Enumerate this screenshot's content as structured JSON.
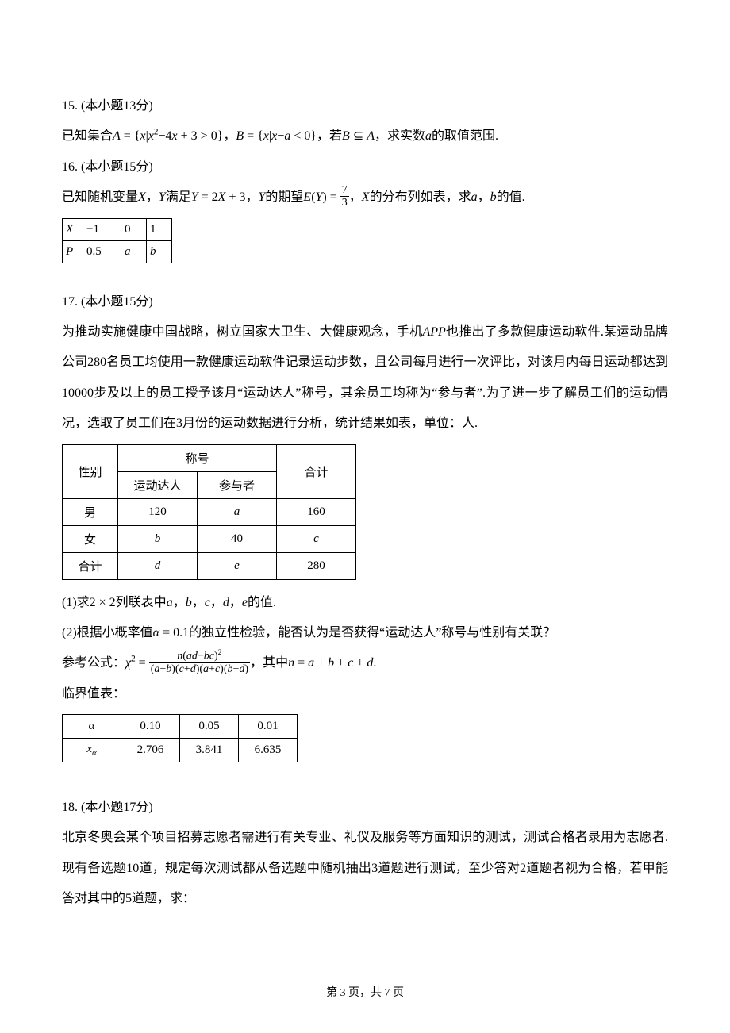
{
  "q15": {
    "heading": "15. (本小题13分)",
    "body": "已知集合<span class=\"math-i\">A</span> = {<span class=\"math-i\">x</span>|<span class=\"math-i\">x</span><sup>2</sup>−4<span class=\"math-i\">x</span> + 3 > 0}，<span class=\"math-i\">B</span> = {<span class=\"math-i\">x</span>|<span class=\"math-i\">x</span>−<span class=\"math-i\">a</span> < 0}，若<span class=\"math-i\">B</span> ⊆ <span class=\"math-i\">A</span>，求实数<span class=\"math-i\">a</span>的取值范围."
  },
  "q16": {
    "heading": "16. (本小题15分)",
    "body_pre": "已知随机变量<span class=\"math-i\">X</span>，<span class=\"math-i\">Y</span>满足<span class=\"math-i\">Y</span> = 2<span class=\"math-i\">X</span> + 3，<span class=\"math-i\">Y</span>的期望<span class=\"math-i\">E</span>(<span class=\"math-i\">Y</span>) = ",
    "frac": {
      "num": "7",
      "den": "3"
    },
    "body_post": "，<span class=\"math-i\">X</span>的分布列如表，求<span class=\"math-i\">a</span>，<span class=\"math-i\">b</span>的值.",
    "table": {
      "row1": [
        "X",
        "−1",
        "0",
        "1"
      ],
      "row2": [
        "P",
        "0.5",
        "a",
        "b"
      ]
    }
  },
  "q17": {
    "heading": "17. (本小题15分)",
    "p1": "为推动实施健康中国战略，树立国家大卫生、大健康观念，手机<span class=\"math-i\">APP</span>也推出了多款健康运动软件.某运动品牌公司280名员工均使用一款健康运动软件记录运动步数，且公司每月进行一次评比，对该月内每日运动都达到10000步及以上的员工授予该月“运动达人”称号，其余员工均称为“参与者”.为了进一步了解员工们的运动情况，选取了员工们在3月份的运动数据进行分析，统计结果如表，单位：人.",
    "table": {
      "h_gender": "性别",
      "h_title": "称号",
      "h_total": "合计",
      "h_sub1": "运动达人",
      "h_sub2": "参与者",
      "rows": [
        [
          "男",
          "120",
          "<span class=\"math-i\">a</span>",
          "160"
        ],
        [
          "女",
          "<span class=\"math-i\">b</span>",
          "40",
          "<span class=\"math-i\">c</span>"
        ],
        [
          "合计",
          "<span class=\"math-i\">d</span>",
          "<span class=\"math-i\">e</span>",
          "280"
        ]
      ]
    },
    "sub1": "(1)求2 × 2列联表中<span class=\"math-i\">a</span>，<span class=\"math-i\">b</span>，<span class=\"math-i\">c</span>，<span class=\"math-i\">d</span>，<span class=\"math-i\">e</span>的值.",
    "sub2": "(2)根据小概率值<span class=\"math-i\">α</span> = 0.1的独立性检验，能否认为是否获得“运动达人”称号与性别有关联？",
    "formula_pre": "参考公式：<span class=\"math-i\">χ</span><sup>2</sup> = ",
    "formula_frac": {
      "num": "<span class=\"math-i\">n</span>(<span class=\"math-i\">ad</span>−<span class=\"math-i\">bc</span>)<sup>2</sup>",
      "den": "(<span class=\"math-i\">a</span>+<span class=\"math-i\">b</span>)(<span class=\"math-i\">c</span>+<span class=\"math-i\">d</span>)(<span class=\"math-i\">a</span>+<span class=\"math-i\">c</span>)(<span class=\"math-i\">b</span>+<span class=\"math-i\">d</span>)"
    },
    "formula_post": "，其中<span class=\"math-i\">n</span> = <span class=\"math-i\">a</span> + <span class=\"math-i\">b</span> + <span class=\"math-i\">c</span> + <span class=\"math-i\">d</span>.",
    "crit_label": "临界值表：",
    "crit_table": {
      "row1": [
        "<span class=\"math-i\">α</span>",
        "0.10",
        "0.05",
        "0.01"
      ],
      "row2": [
        "<span class=\"math-i\">x<sub>α</sub></span>",
        "2.706",
        "3.841",
        "6.635"
      ]
    }
  },
  "q18": {
    "heading": "18. (本小题17分)",
    "p1": "北京冬奥会某个项目招募志愿者需进行有关专业、礼仪及服务等方面知识的测试，测试合格者录用为志愿者.现有备选题10道，规定每次测试都从备选题中随机抽出3道题进行测试，至少答对2道题者视为合格，若甲能答对其中的5道题，求："
  },
  "footer": "第 3 页，共 7 页"
}
